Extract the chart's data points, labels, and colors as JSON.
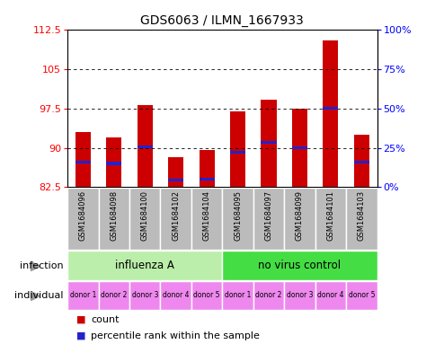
{
  "title": "GDS6063 / ILMN_1667933",
  "samples": [
    "GSM1684096",
    "GSM1684098",
    "GSM1684100",
    "GSM1684102",
    "GSM1684104",
    "GSM1684095",
    "GSM1684097",
    "GSM1684099",
    "GSM1684101",
    "GSM1684103"
  ],
  "count_values": [
    93.0,
    92.0,
    98.2,
    88.2,
    89.5,
    97.0,
    99.2,
    97.5,
    110.5,
    92.5
  ],
  "percentile_values": [
    87.2,
    87.0,
    90.2,
    83.8,
    84.0,
    89.2,
    91.0,
    90.0,
    97.5,
    87.2
  ],
  "ymin": 82.5,
  "ymax": 112.5,
  "yticks": [
    82.5,
    90.0,
    97.5,
    105.0,
    112.5
  ],
  "ytick_labels": [
    "82.5",
    "90",
    "97.5",
    "105",
    "112.5"
  ],
  "y2ticks_pct": [
    0,
    25,
    50,
    75,
    100
  ],
  "bar_color": "#cc0000",
  "percentile_color": "#2222cc",
  "infection_groups": [
    {
      "label": "influenza A",
      "start": 0,
      "end": 5,
      "color": "#bbeeaa"
    },
    {
      "label": "no virus control",
      "start": 5,
      "end": 10,
      "color": "#44dd44"
    }
  ],
  "individual_labels": [
    "donor 1",
    "donor 2",
    "donor 3",
    "donor 4",
    "donor 5",
    "donor 1",
    "donor 2",
    "donor 3",
    "donor 4",
    "donor 5"
  ],
  "individual_color": "#ee88ee",
  "sample_bg_color": "#bbbbbb",
  "background_color": "#ffffff",
  "bar_width": 0.5,
  "title_fontsize": 10
}
